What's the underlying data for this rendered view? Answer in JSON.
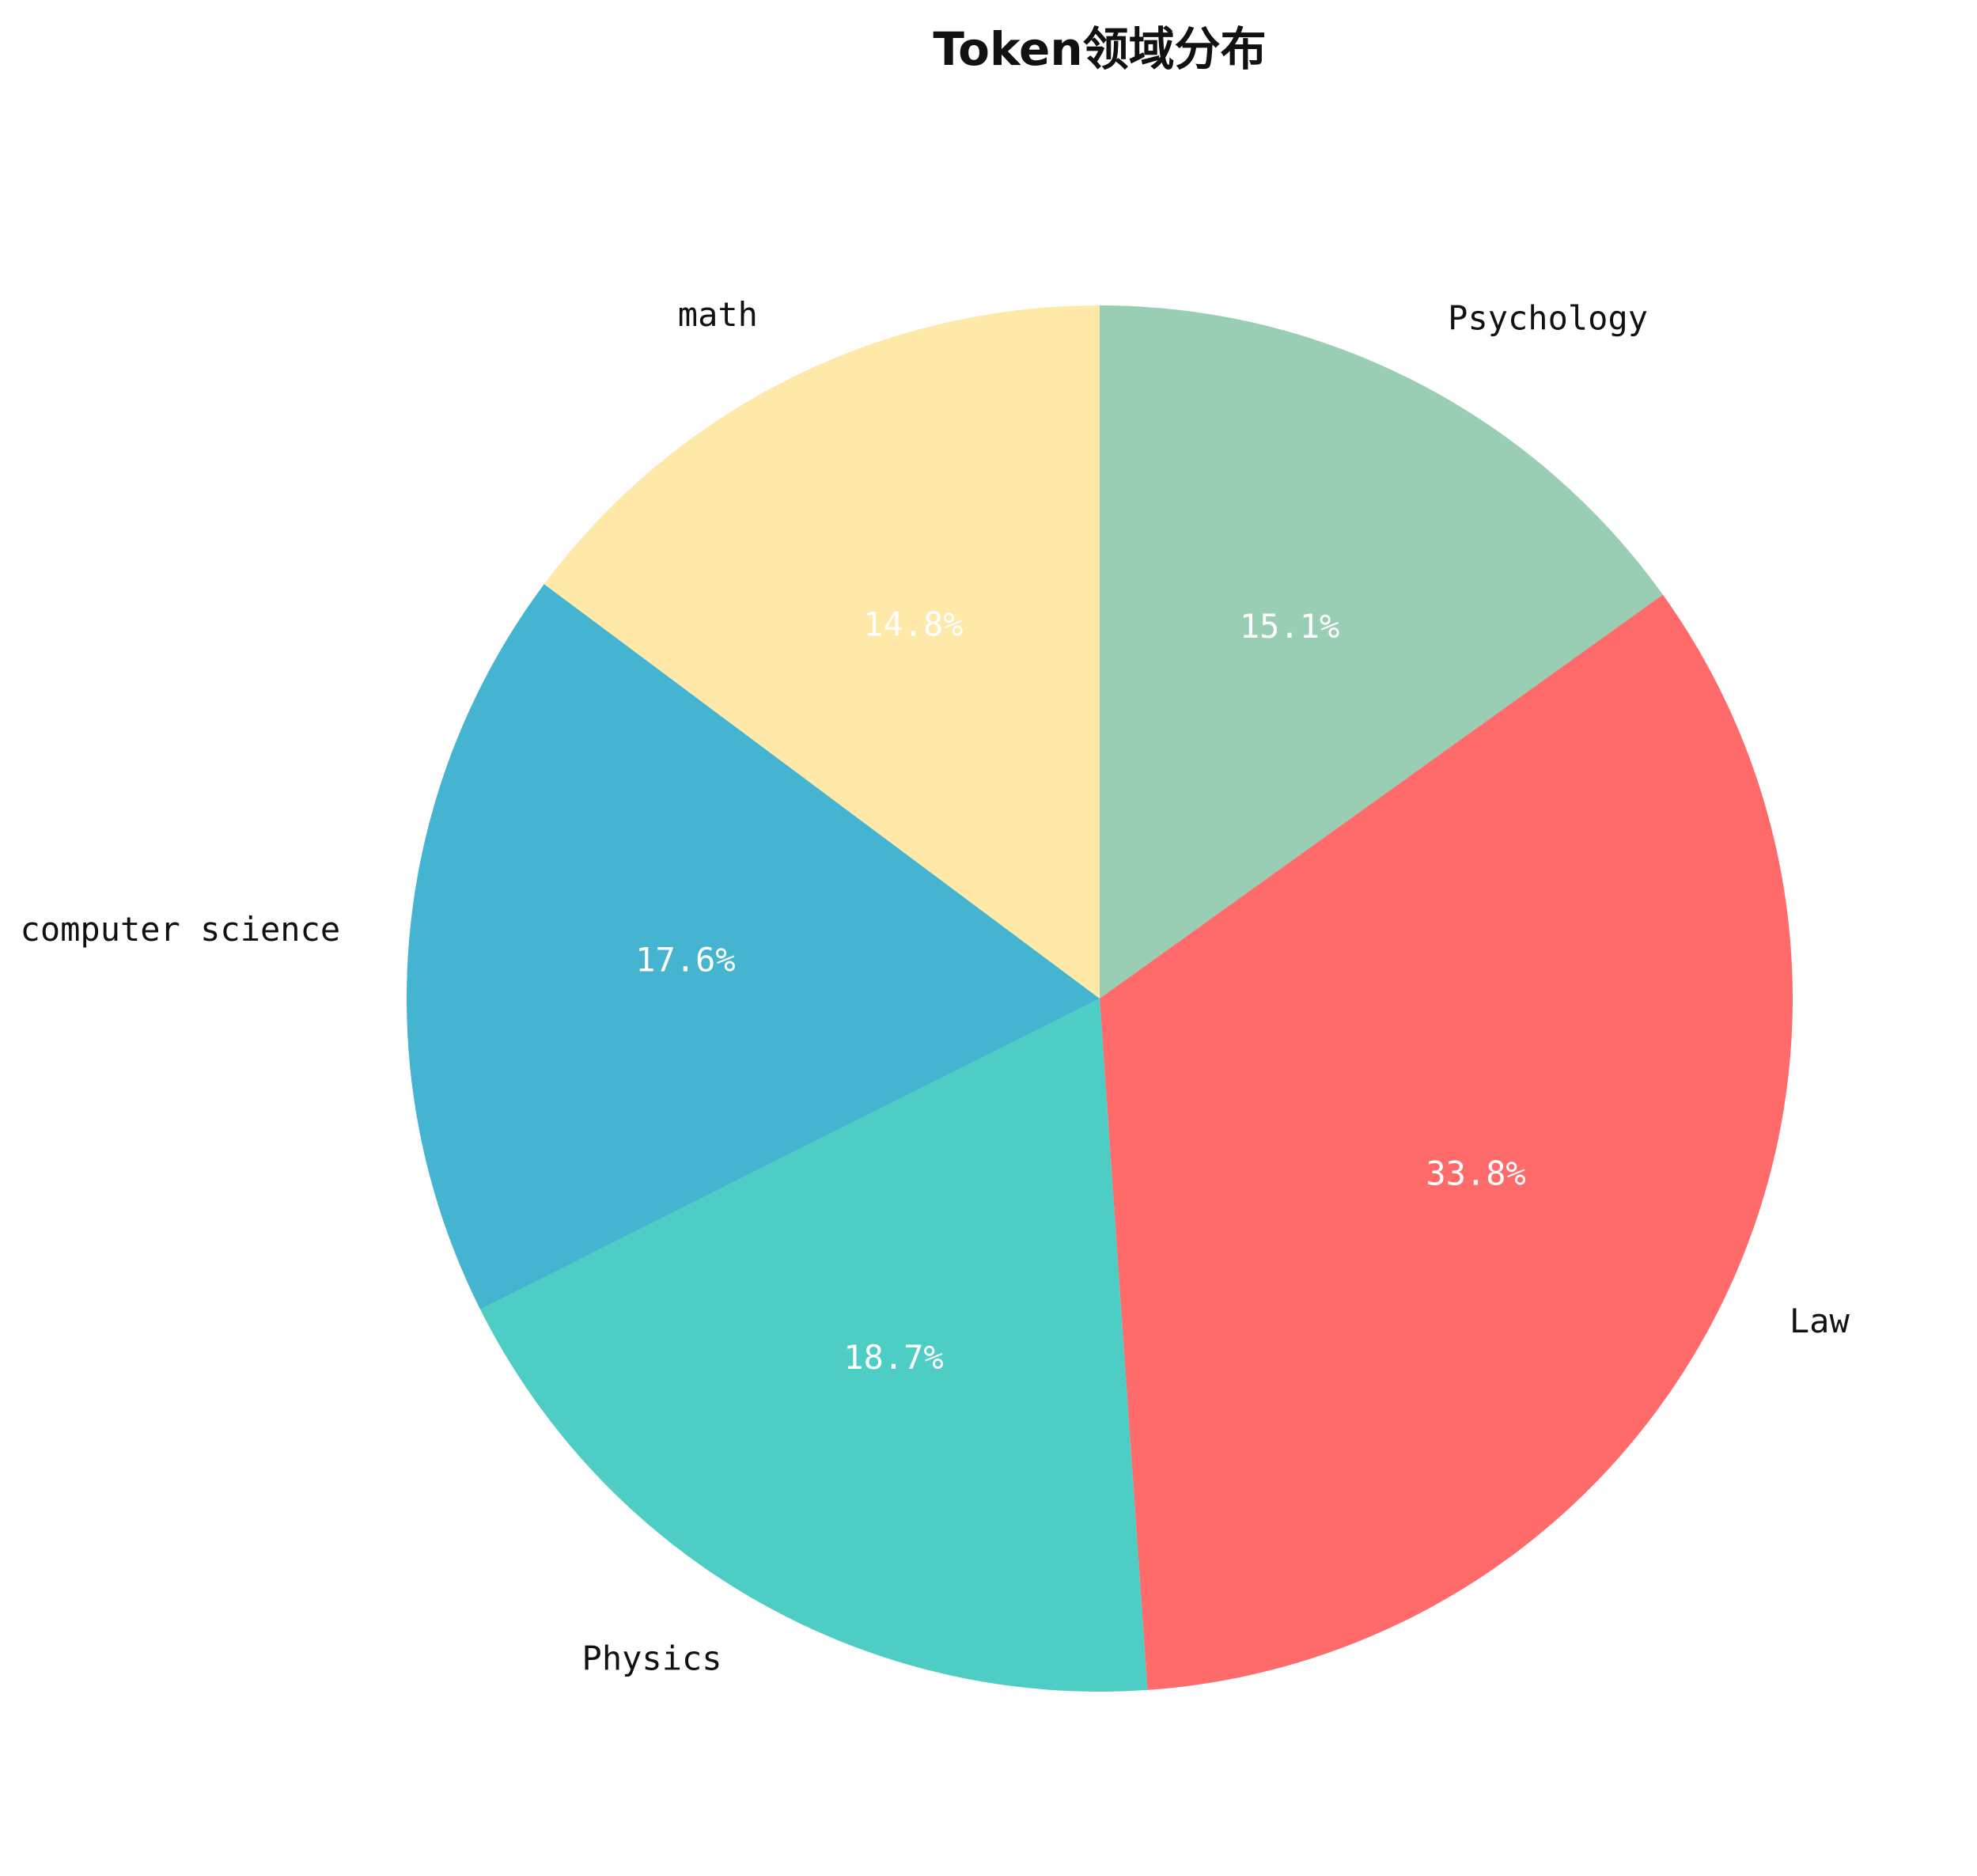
{
  "chart_data": {
    "type": "pie",
    "title": "Token领域分布",
    "categories": [
      "Psychology",
      "Law",
      "Physics",
      "computer science",
      "math"
    ],
    "values": [
      15.1,
      33.8,
      18.7,
      17.6,
      14.8
    ],
    "value_labels": [
      "15.1%",
      "33.8%",
      "18.7%",
      "17.6%",
      "14.8%"
    ],
    "colors": [
      "#99CEB4",
      "#FF6B6B",
      "#4ECDC4",
      "#45B4D1",
      "#FEE9A8"
    ],
    "start_angle": "top, clockwise",
    "legend": "none"
  }
}
